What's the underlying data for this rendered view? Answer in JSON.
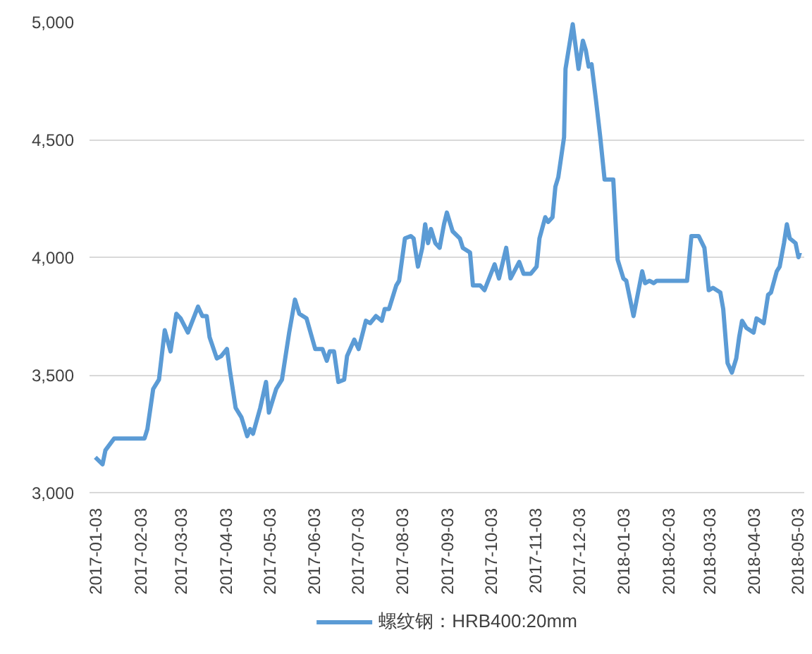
{
  "chart_data": {
    "type": "line",
    "grid": "y",
    "legend": "bottom",
    "line_style": "solid",
    "marker": "none",
    "xlim": [
      "2016-12-30",
      "2018-05-08"
    ],
    "xticks": [
      "2017-01-03",
      "2017-02-03",
      "2017-03-03",
      "2017-04-03",
      "2017-05-03",
      "2017-06-03",
      "2017-07-03",
      "2017-08-03",
      "2017-09-03",
      "2017-10-03",
      "2017-11-03",
      "2017-12-03",
      "2018-01-03",
      "2018-02-03",
      "2018-03-03",
      "2018-04-03",
      "2018-05-03"
    ],
    "ylim": [
      3000,
      5000
    ],
    "yticks": [
      {
        "value": 3000,
        "label": "3,000"
      },
      {
        "value": 3500,
        "label": "3,500"
      },
      {
        "value": 4000,
        "label": "4,000"
      },
      {
        "value": 4500,
        "label": "4,500"
      },
      {
        "value": 5000,
        "label": "5,000"
      }
    ],
    "series": [
      {
        "name": "螺纹钢：HRB400:20mm",
        "color": "#5b9bd5",
        "x": [
          "2017-01-03",
          "2017-01-08",
          "2017-01-10",
          "2017-01-16",
          "2017-02-06",
          "2017-02-08",
          "2017-02-12",
          "2017-02-16",
          "2017-02-20",
          "2017-02-24",
          "2017-02-28",
          "2017-03-03",
          "2017-03-08",
          "2017-03-15",
          "2017-03-18",
          "2017-03-21",
          "2017-03-23",
          "2017-03-28",
          "2017-03-31",
          "2017-04-04",
          "2017-04-06",
          "2017-04-10",
          "2017-04-14",
          "2017-04-18",
          "2017-04-20",
          "2017-04-22",
          "2017-04-27",
          "2017-05-01",
          "2017-05-03",
          "2017-05-08",
          "2017-05-12",
          "2017-05-17",
          "2017-05-21",
          "2017-05-24",
          "2017-05-29",
          "2017-06-04",
          "2017-06-09",
          "2017-06-12",
          "2017-06-14",
          "2017-06-17",
          "2017-06-20",
          "2017-06-24",
          "2017-06-26",
          "2017-07-01",
          "2017-07-04",
          "2017-07-09",
          "2017-07-12",
          "2017-07-16",
          "2017-07-20",
          "2017-07-22",
          "2017-07-25",
          "2017-07-30",
          "2017-08-01",
          "2017-08-05",
          "2017-08-09",
          "2017-08-11",
          "2017-08-14",
          "2017-08-17",
          "2017-08-19",
          "2017-08-21",
          "2017-08-23",
          "2017-08-26",
          "2017-08-29",
          "2017-09-01",
          "2017-09-03",
          "2017-09-07",
          "2017-09-12",
          "2017-09-14",
          "2017-09-19",
          "2017-09-21",
          "2017-09-26",
          "2017-09-29",
          "2017-10-06",
          "2017-10-09",
          "2017-10-14",
          "2017-10-17",
          "2017-10-23",
          "2017-10-26",
          "2017-10-31",
          "2017-11-04",
          "2017-11-06",
          "2017-11-10",
          "2017-11-12",
          "2017-11-15",
          "2017-11-17",
          "2017-11-19",
          "2017-11-23",
          "2017-11-24",
          "2017-11-29",
          "2017-12-03",
          "2017-12-06",
          "2017-12-08",
          "2017-12-10",
          "2017-12-12",
          "2017-12-15",
          "2017-12-18",
          "2017-12-21",
          "2017-12-24",
          "2017-12-27",
          "2017-12-30",
          "2018-01-03",
          "2018-01-05",
          "2018-01-08",
          "2018-01-10",
          "2018-01-16",
          "2018-01-18",
          "2018-01-21",
          "2018-01-24",
          "2018-01-26",
          "2018-02-16",
          "2018-02-19",
          "2018-02-24",
          "2018-02-28",
          "2018-03-03",
          "2018-03-06",
          "2018-03-11",
          "2018-03-13",
          "2018-03-16",
          "2018-03-19",
          "2018-03-22",
          "2018-03-24",
          "2018-03-26",
          "2018-03-29",
          "2018-04-03",
          "2018-04-05",
          "2018-04-10",
          "2018-04-13",
          "2018-04-15",
          "2018-04-19",
          "2018-04-21",
          "2018-04-24",
          "2018-04-26",
          "2018-04-28",
          "2018-05-02",
          "2018-05-04",
          "2018-05-05"
        ],
        "values": [
          3150,
          3120,
          3180,
          3230,
          3230,
          3270,
          3440,
          3480,
          3690,
          3600,
          3760,
          3740,
          3680,
          3790,
          3750,
          3750,
          3660,
          3570,
          3580,
          3610,
          3520,
          3360,
          3320,
          3240,
          3270,
          3250,
          3360,
          3470,
          3340,
          3440,
          3480,
          3680,
          3820,
          3760,
          3740,
          3610,
          3610,
          3560,
          3600,
          3600,
          3470,
          3480,
          3580,
          3650,
          3610,
          3730,
          3720,
          3750,
          3730,
          3780,
          3780,
          3880,
          3900,
          4080,
          4090,
          4080,
          3960,
          4040,
          4140,
          4060,
          4120,
          4060,
          4040,
          4140,
          4190,
          4110,
          4080,
          4040,
          4020,
          3880,
          3880,
          3860,
          3970,
          3910,
          4040,
          3910,
          3980,
          3930,
          3930,
          3960,
          4080,
          4170,
          4150,
          4170,
          4300,
          4340,
          4510,
          4800,
          4990,
          4800,
          4920,
          4880,
          4810,
          4820,
          4670,
          4510,
          4330,
          4330,
          4330,
          3990,
          3910,
          3900,
          3810,
          3750,
          3940,
          3890,
          3900,
          3890,
          3900,
          3900,
          4090,
          4090,
          4040,
          3860,
          3870,
          3850,
          3780,
          3550,
          3510,
          3570,
          3660,
          3730,
          3700,
          3680,
          3740,
          3720,
          3840,
          3850,
          3940,
          3960,
          4060,
          4140,
          4080,
          4060,
          4000,
          4020
        ]
      }
    ]
  }
}
